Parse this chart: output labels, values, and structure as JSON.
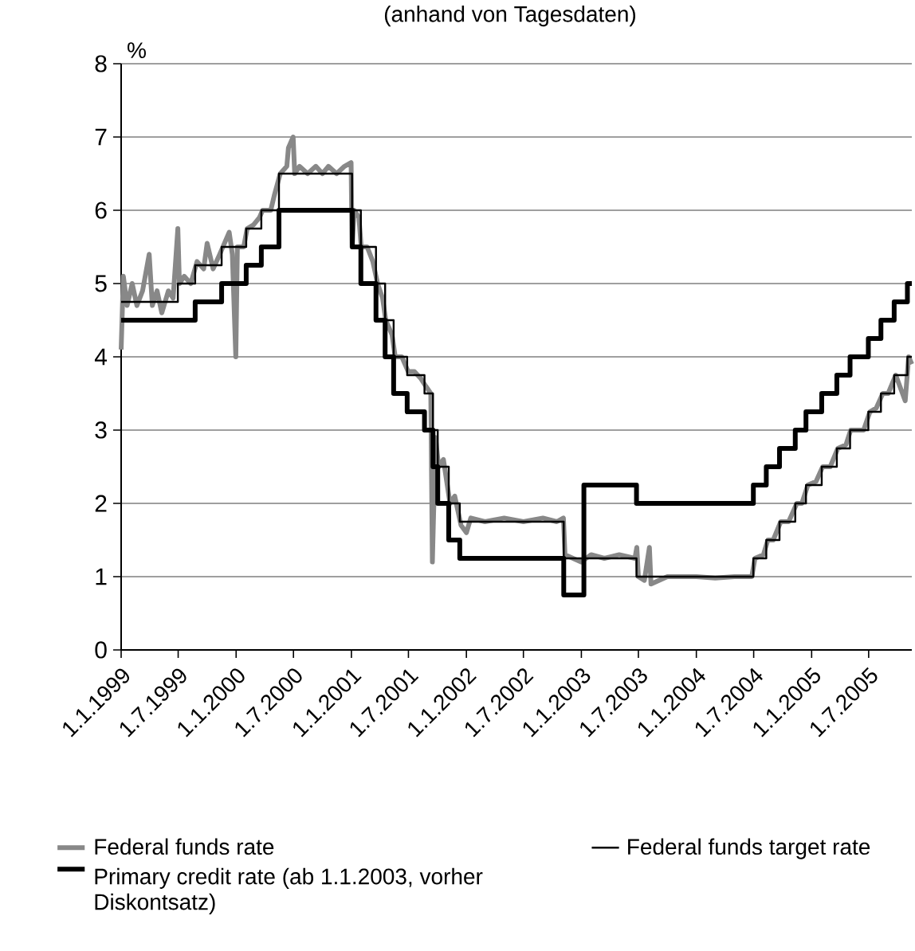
{
  "chart_data": {
    "type": "line",
    "subtitle": "(anhand von Tagesdaten)",
    "ylabel": "%",
    "xlim": [
      "1999-01-01",
      "2005-11-15"
    ],
    "ylim": [
      0,
      8
    ],
    "yticks": [
      0,
      1,
      2,
      3,
      4,
      5,
      6,
      7,
      8
    ],
    "xticks": [
      {
        "value": "1999-01-01",
        "label": "1.1.1999"
      },
      {
        "value": "1999-07-01",
        "label": "1.7.1999"
      },
      {
        "value": "2000-01-01",
        "label": "1.1.2000"
      },
      {
        "value": "2000-07-01",
        "label": "1.7.2000"
      },
      {
        "value": "2001-01-01",
        "label": "1.1.2001"
      },
      {
        "value": "2001-07-01",
        "label": "1.7.2001"
      },
      {
        "value": "2002-01-01",
        "label": "1.1.2002"
      },
      {
        "value": "2002-07-01",
        "label": "1.7.2002"
      },
      {
        "value": "2003-01-01",
        "label": "1.1.2003"
      },
      {
        "value": "2003-07-01",
        "label": "1.7.2003"
      },
      {
        "value": "2004-01-01",
        "label": "1.1.2004"
      },
      {
        "value": "2004-07-01",
        "label": "1.7.2004"
      },
      {
        "value": "2005-01-01",
        "label": "1.1.2005"
      },
      {
        "value": "2005-07-01",
        "label": "1.7.2005"
      }
    ],
    "grid": "y",
    "legend": "bottom",
    "series": [
      {
        "name": "Federal funds rate",
        "color": "#888888",
        "x": [
          "1999-01-01",
          "1999-01-08",
          "1999-01-20",
          "1999-02-05",
          "1999-02-20",
          "1999-03-10",
          "1999-03-31",
          "1999-04-10",
          "1999-04-25",
          "1999-05-10",
          "1999-05-31",
          "1999-06-15",
          "1999-06-30",
          "1999-07-05",
          "1999-07-20",
          "1999-08-10",
          "1999-08-30",
          "1999-09-20",
          "1999-10-01",
          "1999-10-20",
          "1999-11-10",
          "1999-11-20",
          "1999-12-10",
          "1999-12-20",
          "1999-12-31",
          "2000-01-05",
          "2000-01-25",
          "2000-02-05",
          "2000-02-25",
          "2000-03-15",
          "2000-03-25",
          "2000-04-20",
          "2000-05-01",
          "2000-05-20",
          "2000-06-10",
          "2000-06-15",
          "2000-06-30",
          "2000-07-05",
          "2000-07-20",
          "2000-08-15",
          "2000-09-10",
          "2000-10-01",
          "2000-10-20",
          "2000-11-15",
          "2000-12-10",
          "2000-12-31",
          "2001-01-03",
          "2001-01-10",
          "2001-01-25",
          "2001-02-01",
          "2001-02-20",
          "2001-03-10",
          "2001-03-25",
          "2001-04-10",
          "2001-04-20",
          "2001-05-10",
          "2001-05-20",
          "2001-06-10",
          "2001-06-30",
          "2001-07-20",
          "2001-08-10",
          "2001-08-25",
          "2001-09-10",
          "2001-09-15",
          "2001-09-25",
          "2001-10-05",
          "2001-10-20",
          "2001-11-10",
          "2001-11-25",
          "2001-12-15",
          "2002-01-01",
          "2002-01-15",
          "2002-03-01",
          "2002-05-01",
          "2002-07-01",
          "2002-09-01",
          "2002-10-15",
          "2002-11-05",
          "2002-11-10",
          "2002-12-31",
          "2003-02-01",
          "2003-03-15",
          "2003-05-01",
          "2003-06-20",
          "2003-06-26",
          "2003-07-01",
          "2003-07-20",
          "2003-08-05",
          "2003-08-10",
          "2003-10-01",
          "2004-01-01",
          "2004-03-01",
          "2004-05-01",
          "2004-06-25",
          "2004-07-05",
          "2004-08-01",
          "2004-08-15",
          "2004-09-01",
          "2004-09-25",
          "2004-10-20",
          "2004-11-15",
          "2004-12-01",
          "2004-12-20",
          "2005-01-15",
          "2005-02-05",
          "2005-03-01",
          "2005-03-25",
          "2005-04-20",
          "2005-05-05",
          "2005-06-15",
          "2005-07-05",
          "2005-07-25",
          "2005-08-15",
          "2005-09-01",
          "2005-09-25",
          "2005-10-25",
          "2005-11-05",
          "2005-11-15"
        ],
        "values": [
          4.1,
          5.1,
          4.7,
          5.0,
          4.7,
          4.9,
          5.4,
          4.7,
          4.9,
          4.6,
          4.9,
          4.8,
          5.75,
          5.0,
          5.1,
          5.0,
          5.3,
          5.2,
          5.55,
          5.2,
          5.4,
          5.5,
          5.7,
          5.4,
          4.0,
          5.5,
          5.5,
          5.75,
          5.8,
          5.9,
          6.0,
          6.0,
          6.2,
          6.5,
          6.6,
          6.85,
          7.0,
          6.5,
          6.6,
          6.5,
          6.6,
          6.5,
          6.6,
          6.5,
          6.6,
          6.65,
          5.5,
          6.0,
          5.9,
          5.5,
          5.5,
          5.3,
          5.0,
          4.8,
          4.5,
          4.3,
          4.0,
          4.0,
          3.8,
          3.8,
          3.7,
          3.6,
          3.5,
          1.2,
          2.9,
          2.5,
          2.6,
          2.0,
          2.1,
          1.7,
          1.6,
          1.8,
          1.75,
          1.8,
          1.75,
          1.8,
          1.75,
          1.8,
          1.3,
          1.2,
          1.3,
          1.25,
          1.3,
          1.25,
          1.4,
          1.0,
          0.95,
          1.4,
          0.9,
          1.0,
          1.0,
          0.98,
          1.0,
          1.0,
          1.25,
          1.3,
          1.5,
          1.5,
          1.75,
          1.75,
          2.0,
          2.0,
          2.25,
          2.3,
          2.5,
          2.5,
          2.75,
          2.8,
          3.0,
          3.0,
          3.25,
          3.3,
          3.5,
          3.5,
          3.75,
          3.4,
          4.0,
          3.9
        ]
      },
      {
        "name": "Federal funds target rate",
        "type": "step",
        "color": "#000000",
        "x": [
          "1999-01-01",
          "1999-06-30",
          "1999-08-24",
          "1999-11-16",
          "2000-02-02",
          "2000-03-21",
          "2000-05-16",
          "2001-01-03",
          "2001-01-31",
          "2001-03-20",
          "2001-04-18",
          "2001-05-15",
          "2001-06-27",
          "2001-08-21",
          "2001-09-17",
          "2001-10-02",
          "2001-11-06",
          "2001-12-11",
          "2002-11-06",
          "2003-06-25",
          "2004-06-30",
          "2004-08-10",
          "2004-09-21",
          "2004-11-10",
          "2004-12-14",
          "2005-02-02",
          "2005-03-22",
          "2005-05-03",
          "2005-06-30",
          "2005-08-09",
          "2005-09-20",
          "2005-11-01",
          "2005-11-15"
        ],
        "values": [
          4.75,
          5.0,
          5.25,
          5.5,
          5.75,
          6.0,
          6.5,
          6.0,
          5.5,
          5.0,
          4.5,
          4.0,
          3.75,
          3.5,
          3.0,
          2.5,
          2.0,
          1.75,
          1.25,
          1.0,
          1.25,
          1.5,
          1.75,
          2.0,
          2.25,
          2.5,
          2.75,
          3.0,
          3.25,
          3.5,
          3.75,
          4.0,
          4.0
        ]
      },
      {
        "name": "Primary credit rate (ab 1.1.2003, vorher Diskontsatz)",
        "type": "step",
        "color": "#000000",
        "x": [
          "1999-01-01",
          "1999-08-24",
          "1999-11-16",
          "2000-02-02",
          "2000-03-21",
          "2000-05-16",
          "2001-01-04",
          "2001-01-31",
          "2001-03-20",
          "2001-04-18",
          "2001-05-15",
          "2001-06-27",
          "2001-08-21",
          "2001-09-17",
          "2001-10-02",
          "2001-11-06",
          "2001-12-11",
          "2002-11-06",
          "2003-01-09",
          "2003-06-25",
          "2004-06-30",
          "2004-08-10",
          "2004-09-21",
          "2004-11-10",
          "2004-12-14",
          "2005-02-02",
          "2005-03-22",
          "2005-05-03",
          "2005-06-30",
          "2005-08-09",
          "2005-09-20",
          "2005-11-01",
          "2005-11-15"
        ],
        "values": [
          4.5,
          4.75,
          5.0,
          5.25,
          5.5,
          6.0,
          5.5,
          5.0,
          4.5,
          4.0,
          3.5,
          3.25,
          3.0,
          2.5,
          2.0,
          1.5,
          1.25,
          0.75,
          2.25,
          2.0,
          2.25,
          2.5,
          2.75,
          3.0,
          3.25,
          3.5,
          3.75,
          4.0,
          4.25,
          4.5,
          4.75,
          5.0,
          5.0
        ]
      }
    ]
  }
}
